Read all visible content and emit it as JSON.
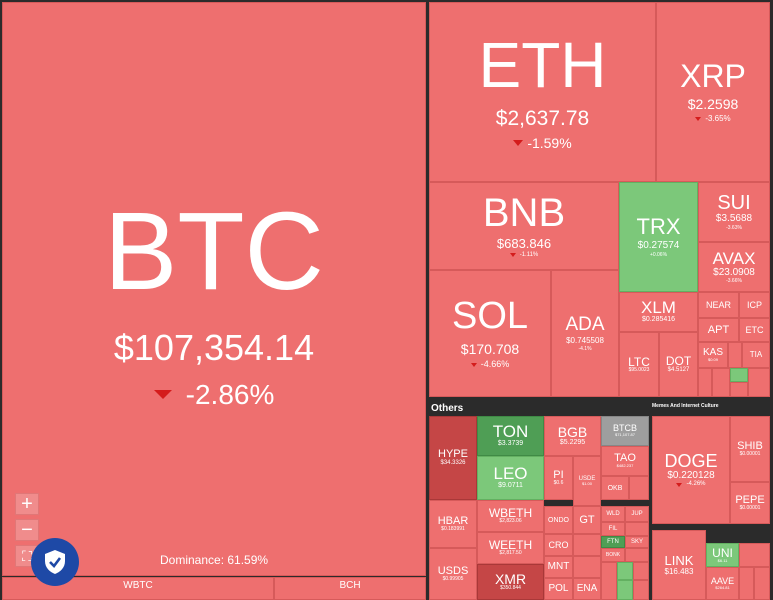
{
  "btc": {
    "symbol": "BTC",
    "price": "$107,354.14",
    "change": "-2.86%",
    "dominance": "Dominance: 61.59%"
  },
  "wbtc": "WBTC",
  "bch": "BCH",
  "eth": {
    "symbol": "ETH",
    "price": "$2,637.78",
    "change": "-1.59%"
  },
  "xrp": {
    "symbol": "XRP",
    "price": "$2.2598",
    "change": "-3.65%"
  },
  "bnb": {
    "symbol": "BNB",
    "price": "$683.846",
    "change": "-1.11%"
  },
  "trx": {
    "symbol": "TRX",
    "price": "$0.27574",
    "change": "+0.06%"
  },
  "sui": {
    "symbol": "SUI",
    "price": "$3.5688",
    "change": "-3.63%"
  },
  "avax": {
    "symbol": "AVAX",
    "price": "$23.0908",
    "change": "-3.66%"
  },
  "sol": {
    "symbol": "SOL",
    "price": "$170.708",
    "change": "-4.66%"
  },
  "ada": {
    "symbol": "ADA",
    "price": "$0.745508",
    "change": "-4.1%"
  },
  "xlm": {
    "symbol": "XLM",
    "price": "$0.285416"
  },
  "near": "NEAR",
  "icp": "ICP",
  "apt": "APT",
  "etc": "ETC",
  "kas": "KAS",
  "ltc": "LTC",
  "dot": "DOT",
  "tia": "TIA",
  "ltc_price": "$95.0023",
  "dot_price": "$4.5127",
  "kas_price": "$0.09",
  "others_label": "Others",
  "memes_label": "Memes And Internet Culture",
  "hype": {
    "symbol": "HYPE",
    "price": "$34.3326"
  },
  "ton": {
    "symbol": "TON",
    "price": "$3.3739"
  },
  "leo": {
    "symbol": "LEO",
    "price": "$9.0711"
  },
  "bgb": {
    "symbol": "BGB",
    "price": "$5.2295"
  },
  "btcb": {
    "symbol": "BTCB",
    "price": "$71,107.87"
  },
  "tao": {
    "symbol": "TAO",
    "price": "$482.237"
  },
  "pi": {
    "symbol": "PI",
    "price": "$0.6"
  },
  "usde": {
    "symbol": "USDE",
    "price": "$1.00"
  },
  "okb": "OKB",
  "hbar": {
    "symbol": "HBAR",
    "price": "$0.183991"
  },
  "wbeth": {
    "symbol": "WBETH",
    "price": "$2,823.06"
  },
  "weeth": {
    "symbol": "WEETH",
    "price": "$2,817.50"
  },
  "ondo": "ONDO",
  "gt": "GT",
  "wld": "WLD",
  "jup": "JUP",
  "fil": "FIL",
  "usds": {
    "symbol": "USDS",
    "price": "$0.99905"
  },
  "cro": "CRO",
  "ftn": "FTN",
  "sky": "SKY",
  "mnt": "MNT",
  "bonk": "BONK",
  "xmr": {
    "symbol": "XMR",
    "price": "$350.844"
  },
  "pol": "POL",
  "ena": "ENA",
  "doge": {
    "symbol": "DOGE",
    "price": "$0.220128",
    "change": "-4.26%"
  },
  "shib": {
    "symbol": "SHIB",
    "price": "$0.00001"
  },
  "pepe": {
    "symbol": "PEPE",
    "price": "$0.00001"
  },
  "link": {
    "symbol": "LINK",
    "price": "$16.483"
  },
  "uni": {
    "symbol": "UNI",
    "price": "$6.11"
  },
  "aave": {
    "symbol": "AAVE",
    "price": "$264.81"
  },
  "zoom_in": "+",
  "zoom_out": "−",
  "fullscreen": "⛶",
  "colors": {
    "red": "#ee6f6f",
    "green": "#7cc87a",
    "dark_green": "#4f9e55",
    "dark_red": "#c54646",
    "gray": "#9e9e9e"
  }
}
